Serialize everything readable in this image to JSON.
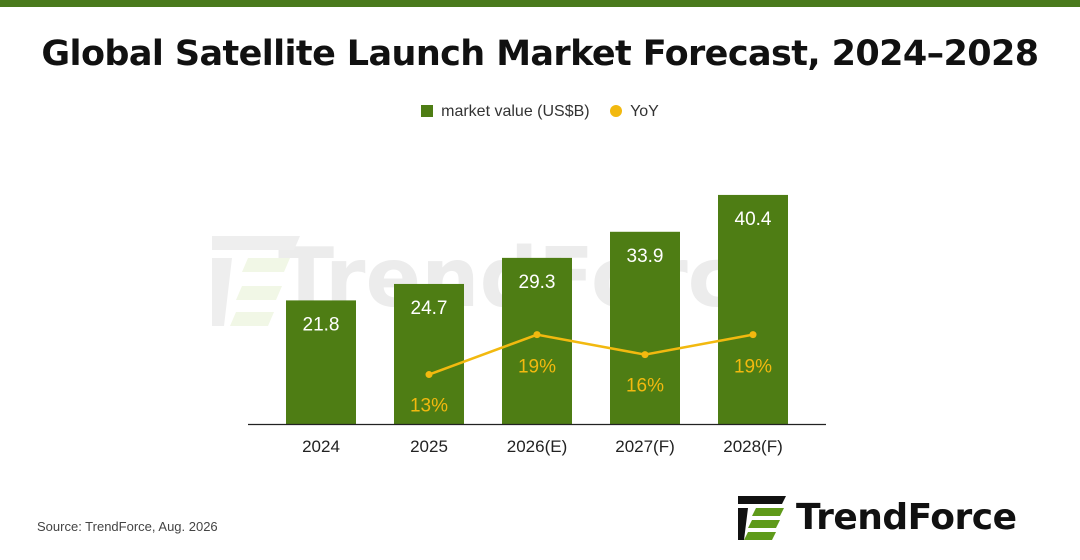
{
  "title": "Global Satellite Launch Market Forecast, 2024–2028",
  "legend": {
    "bar_label": "market value (US$B)",
    "line_label": "YoY"
  },
  "source": "Source: TrendForce, Aug. 2026",
  "watermark": "TrendForce",
  "logo": {
    "text": "TrendForce"
  },
  "colors": {
    "accent": "#4a7a1c",
    "bar": "#4e7d14",
    "line": "#f2b90f"
  },
  "chart_data": {
    "type": "bar",
    "categories": [
      "2024",
      "2025",
      "2026(E)",
      "2027(F)",
      "2028(F)"
    ],
    "series": [
      {
        "name": "market value (US$B)",
        "type": "bar",
        "values": [
          21.8,
          24.7,
          29.3,
          33.9,
          40.4
        ],
        "labels": [
          "21.8",
          "24.7",
          "29.3",
          "33.9",
          "40.4"
        ]
      },
      {
        "name": "YoY",
        "type": "line",
        "values": [
          null,
          13,
          19,
          16,
          19
        ],
        "labels": [
          "",
          "13%",
          "19%",
          "16%",
          "19%"
        ]
      }
    ],
    "legend_position": "top-center",
    "grid": false
  }
}
